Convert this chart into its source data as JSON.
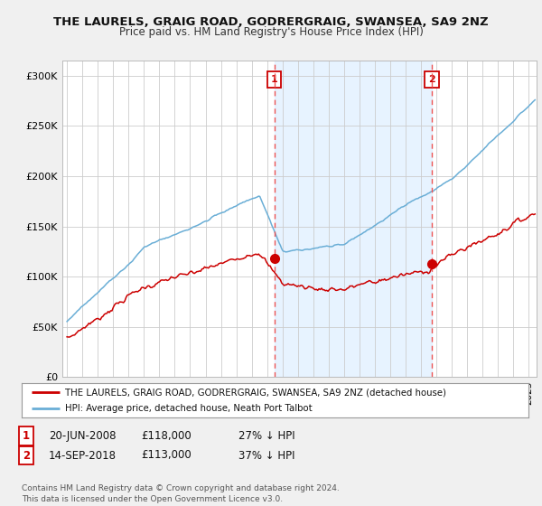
{
  "title": "THE LAURELS, GRAIG ROAD, GODRERGRAIG, SWANSEA, SA9 2NZ",
  "subtitle": "Price paid vs. HM Land Registry's House Price Index (HPI)",
  "ylabel_ticks": [
    "£0",
    "£50K",
    "£100K",
    "£150K",
    "£200K",
    "£250K",
    "£300K"
  ],
  "ytick_values": [
    0,
    50000,
    100000,
    150000,
    200000,
    250000,
    300000
  ],
  "ylim": [
    0,
    315000
  ],
  "xlim_start": 1994.7,
  "xlim_end": 2025.5,
  "hpi_color": "#6aaed6",
  "price_color": "#cc0000",
  "vline_color": "#ee5555",
  "shade_color": "#ddeeff",
  "marker1_x": 2008.47,
  "marker1_y": 118000,
  "marker2_x": 2018.71,
  "marker2_y": 113000,
  "legend_label1": "THE LAURELS, GRAIG ROAD, GODRERGRAIG, SWANSEA, SA9 2NZ (detached house)",
  "legend_label2": "HPI: Average price, detached house, Neath Port Talbot",
  "footer": "Contains HM Land Registry data © Crown copyright and database right 2024.\nThis data is licensed under the Open Government Licence v3.0.",
  "bg_color": "#f0f0f0",
  "plot_bg_color": "#ffffff",
  "grid_color": "#cccccc"
}
